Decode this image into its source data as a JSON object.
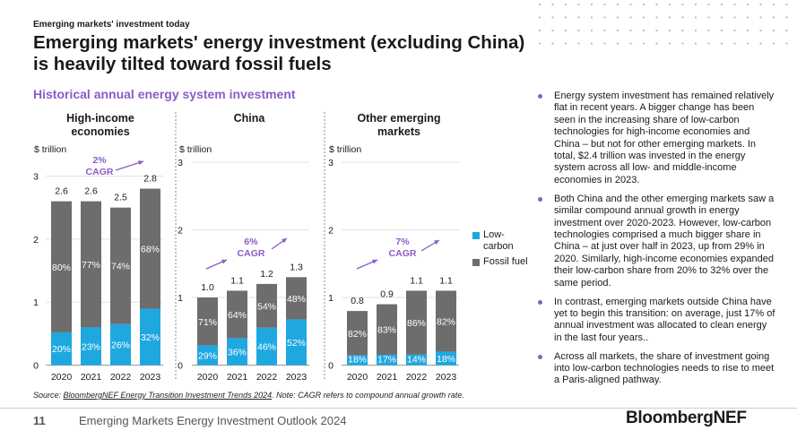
{
  "header": {
    "kicker": "Emerging markets' investment today",
    "title": "Emerging markets' energy investment (excluding China) is heavily tilted toward fossil fuels",
    "subtitle": "Historical annual energy system investment"
  },
  "colors": {
    "low_carbon": "#1fa8e0",
    "fossil_fuel": "#6d6d6d",
    "accent": "#8a5cc7",
    "text": "#1a1a1a"
  },
  "chart_data": [
    {
      "type": "bar",
      "stacked": true,
      "title": "High-income economies",
      "ylabel": "$ trillion",
      "ylim": [
        0,
        3
      ],
      "yticks": [
        "0",
        "1",
        "2",
        "3"
      ],
      "categories": [
        "2020",
        "2021",
        "2022",
        "2023"
      ],
      "totals": [
        2.6,
        2.6,
        2.5,
        2.8
      ],
      "total_labels": [
        "2.6",
        "2.6",
        "2.5",
        "2.8"
      ],
      "series": [
        {
          "name": "Low-carbon",
          "share_labels": [
            "20%",
            "23%",
            "26%",
            "32%"
          ]
        },
        {
          "name": "Fossil fuel",
          "share_labels": [
            "80%",
            "77%",
            "74%",
            "68%"
          ]
        }
      ],
      "annotation": "2% CAGR"
    },
    {
      "type": "bar",
      "stacked": true,
      "title": "China",
      "ylabel": "$ trillion",
      "ylim": [
        0,
        3
      ],
      "yticks": [
        "0",
        "1",
        "2",
        "3"
      ],
      "categories": [
        "2020",
        "2021",
        "2022",
        "2023"
      ],
      "totals": [
        1.0,
        1.1,
        1.2,
        1.3
      ],
      "total_labels": [
        "1.0",
        "1.1",
        "1.2",
        "1.3"
      ],
      "series": [
        {
          "name": "Low-carbon",
          "share_labels": [
            "29%",
            "36%",
            "46%",
            "52%"
          ]
        },
        {
          "name": "Fossil fuel",
          "share_labels": [
            "71%",
            "64%",
            "54%",
            "48%"
          ]
        }
      ],
      "annotation": "6% CAGR"
    },
    {
      "type": "bar",
      "stacked": true,
      "title": "Other emerging markets",
      "ylabel": "$ trillion",
      "ylim": [
        0,
        3
      ],
      "yticks": [
        "0",
        "1",
        "2",
        "3"
      ],
      "categories": [
        "2020",
        "2021",
        "2022",
        "2023"
      ],
      "totals": [
        0.8,
        0.9,
        1.1,
        1.1
      ],
      "total_labels": [
        "0.8",
        "0.9",
        "1.1",
        "1.1"
      ],
      "series": [
        {
          "name": "Low-carbon",
          "share_labels": [
            "18%",
            "17%",
            "14%",
            "18%"
          ]
        },
        {
          "name": "Fossil fuel",
          "share_labels": [
            "82%",
            "83%",
            "86%",
            "82%"
          ]
        }
      ],
      "annotation": "7% CAGR"
    }
  ],
  "legend": {
    "low_carbon": "Low-carbon",
    "fossil_fuel": "Fossil fuel"
  },
  "bullets": [
    "Energy system investment has remained relatively flat in recent years. A bigger change has been seen in the increasing share of low-carbon technologies for high-income economies and China – but not for other emerging markets. In total, $2.4 trillion was invested in the energy system across all low- and middle-income economies in 2023.",
    "Both China and the other emerging markets saw a similar compound annual growth in energy investment over 2020-2023. However, low-carbon technologies comprised a much bigger share in China – at just over half in 2023, up from 29% in 2020. Similarly, high-income economies expanded their low-carbon share from 20% to 32% over the same period.",
    "In contrast, emerging markets outside China have yet to begin this transition: on average, just 17% of annual investment was allocated to clean energy in the last four years..",
    "Across all markets, the share of investment going into low-carbon technologies needs to rise to meet a Paris-aligned pathway."
  ],
  "source": {
    "prefix": "Source: ",
    "link": "BloombergNEF Energy Transition Investment Trends 2024",
    "suffix": ". Note: CAGR refers to compound annual growth rate."
  },
  "footer": {
    "page_number": "11",
    "text": "Emerging Markets Energy Investment Outlook 2024",
    "brand": "BloombergNEF"
  }
}
